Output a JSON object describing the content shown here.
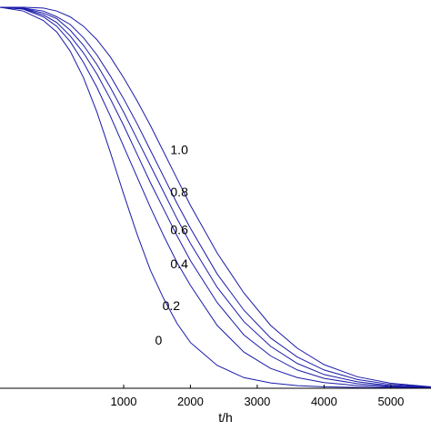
{
  "chart_data": {
    "type": "line",
    "xlabel": "t/h",
    "ylabel": "",
    "xlim": [
      -850,
      5600
    ],
    "ylim": [
      0,
      1
    ],
    "x_ticks": [
      1000,
      2000,
      3000,
      4000,
      5000
    ],
    "x_tick_labels": [
      "1000",
      "2000",
      "3000",
      "4000",
      "5000"
    ],
    "grid": false,
    "line_color": "#1a1aa8",
    "series": [
      {
        "name": "0",
        "x": [
          -850,
          -500,
          -200,
          0,
          200,
          400,
          600,
          800,
          1000,
          1200,
          1400,
          1600,
          1800,
          2000,
          2400,
          2800,
          3200,
          3600,
          4000,
          4500,
          5000,
          5600
        ],
        "y": [
          1.0,
          0.99,
          0.965,
          0.935,
          0.885,
          0.815,
          0.725,
          0.62,
          0.51,
          0.405,
          0.31,
          0.235,
          0.17,
          0.12,
          0.06,
          0.028,
          0.014,
          0.007,
          0.004,
          0.002,
          0.001,
          0.0
        ]
      },
      {
        "name": "0.2",
        "x": [
          -850,
          -500,
          -200,
          0,
          200,
          400,
          600,
          800,
          1000,
          1200,
          1400,
          1600,
          1800,
          2000,
          2400,
          2800,
          3200,
          3600,
          4000,
          4500,
          5000,
          5600
        ],
        "y": [
          1.0,
          0.995,
          0.975,
          0.95,
          0.91,
          0.855,
          0.79,
          0.715,
          0.635,
          0.555,
          0.475,
          0.4,
          0.33,
          0.27,
          0.165,
          0.095,
          0.052,
          0.028,
          0.015,
          0.007,
          0.003,
          0.001
        ]
      },
      {
        "name": "0.4",
        "x": [
          -850,
          -500,
          -200,
          0,
          200,
          400,
          600,
          800,
          1000,
          1200,
          1400,
          1600,
          1800,
          2000,
          2400,
          2800,
          3200,
          3600,
          4000,
          4500,
          5000,
          5600
        ],
        "y": [
          1.0,
          0.996,
          0.98,
          0.96,
          0.925,
          0.88,
          0.825,
          0.76,
          0.69,
          0.615,
          0.54,
          0.47,
          0.4,
          0.335,
          0.225,
          0.14,
          0.085,
          0.048,
          0.026,
          0.012,
          0.005,
          0.002
        ]
      },
      {
        "name": "0.6",
        "x": [
          -850,
          -500,
          -200,
          0,
          200,
          400,
          600,
          800,
          1000,
          1200,
          1400,
          1600,
          1800,
          2000,
          2400,
          2800,
          3200,
          3600,
          4000,
          4500,
          5000,
          5600
        ],
        "y": [
          1.0,
          0.997,
          0.985,
          0.97,
          0.94,
          0.9,
          0.85,
          0.79,
          0.725,
          0.655,
          0.585,
          0.515,
          0.445,
          0.38,
          0.265,
          0.175,
          0.11,
          0.065,
          0.036,
          0.017,
          0.007,
          0.002
        ]
      },
      {
        "name": "0.8",
        "x": [
          -850,
          -500,
          -200,
          0,
          200,
          400,
          600,
          800,
          1000,
          1200,
          1400,
          1600,
          1800,
          2000,
          2400,
          2800,
          3200,
          3600,
          4000,
          4500,
          5000,
          5600
        ],
        "y": [
          1.0,
          0.998,
          0.99,
          0.975,
          0.955,
          0.92,
          0.875,
          0.82,
          0.76,
          0.695,
          0.625,
          0.555,
          0.485,
          0.42,
          0.3,
          0.205,
          0.132,
          0.082,
          0.048,
          0.023,
          0.01,
          0.003
        ]
      },
      {
        "name": "1.0",
        "x": [
          -850,
          -500,
          -200,
          0,
          200,
          400,
          600,
          800,
          1000,
          1200,
          1400,
          1600,
          1800,
          2000,
          2400,
          2800,
          3200,
          3600,
          4000,
          4500,
          5000,
          5600
        ],
        "y": [
          1.0,
          1.0,
          0.998,
          0.99,
          0.975,
          0.95,
          0.915,
          0.87,
          0.815,
          0.755,
          0.69,
          0.62,
          0.55,
          0.48,
          0.355,
          0.25,
          0.165,
          0.105,
          0.062,
          0.03,
          0.013,
          0.004
        ]
      }
    ],
    "curve_labels": [
      {
        "text": "1.0",
        "x": 1700,
        "y": 0.615
      },
      {
        "text": "0.8",
        "x": 1700,
        "y": 0.503
      },
      {
        "text": "0.6",
        "x": 1700,
        "y": 0.405
      },
      {
        "text": "0.4",
        "x": 1700,
        "y": 0.315
      },
      {
        "text": "0.2",
        "x": 1580,
        "y": 0.205
      },
      {
        "text": "0",
        "x": 1470,
        "y": 0.115
      }
    ]
  }
}
